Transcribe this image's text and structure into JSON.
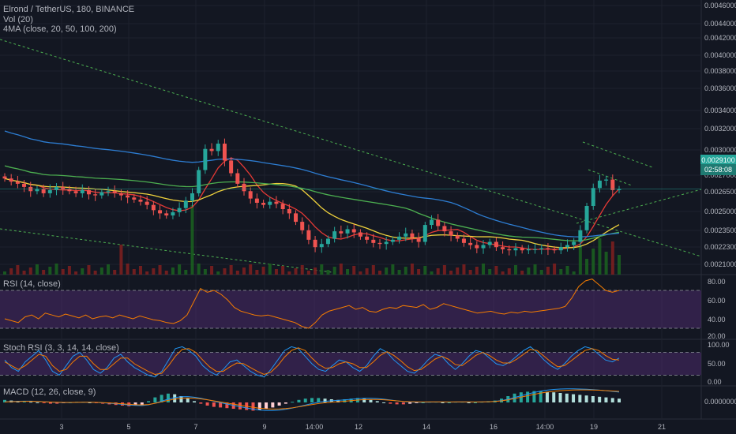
{
  "legend": {
    "symbol": "Elrond / TetherUS, 180, BINANCE",
    "vol": "Vol (20)",
    "ma": "4MA (close, 20, 50, 100, 200)"
  },
  "panels": {
    "rsi_label": "RSI (14, close)",
    "stoch_label": "Stoch RSI (3, 3, 14, 14, close)",
    "macd_label": "MACD (12, 26, close, 9)"
  },
  "price_tag": {
    "price": "0.0029100",
    "countdown": "02:58:08"
  },
  "x_ticks": [
    "3",
    "5",
    "7",
    "9",
    "14:00",
    "12",
    "14",
    "16",
    "14:00",
    "19",
    "21"
  ],
  "price_ticks": [
    "0.0046000",
    "0.0044000",
    "0.0042000",
    "0.0040000",
    "0.0038000",
    "0.0036000",
    "0.0034000",
    "0.0032000",
    "0.0030000",
    "0.0027000",
    "0.0026500",
    "0.0025000",
    "0.0023500",
    "0.0022300",
    "0.0021000"
  ],
  "rsi_ticks": [
    "80.00",
    "60.00",
    "40.00",
    "20.00"
  ],
  "stoch_ticks": [
    "100.00",
    "50.00",
    "0.00"
  ],
  "macd_ticks": [
    "0.0000000"
  ],
  "colors": {
    "bg": "#131722",
    "up": "#26a69a",
    "down": "#ef5350",
    "ma20": "#e53935",
    "ma50": "#f0d23c",
    "ma100": "#4caf50",
    "ma200": "#2d7dd2",
    "trend": "#4caf50",
    "rsi": "#f57c00",
    "stoch_k": "#2196f3",
    "stoch_d": "#f57c00",
    "band": "#4a2a6a"
  },
  "chart_data": [
    {
      "type": "candlestick",
      "title": "Elrond / TetherUS, 180, BINANCE",
      "ylim": [
        0.0021,
        0.0047
      ],
      "last_price": 0.00291,
      "candles_close": [
        0.00301,
        0.00298,
        0.00296,
        0.00293,
        0.00289,
        0.00291,
        0.00287,
        0.0029,
        0.00293,
        0.00291,
        0.00289,
        0.00287,
        0.0029,
        0.00286,
        0.00285,
        0.00288,
        0.00289,
        0.00287,
        0.00285,
        0.00283,
        0.00281,
        0.00279,
        0.00276,
        0.00271,
        0.00268,
        0.00266,
        0.00269,
        0.00273,
        0.0028,
        0.00287,
        0.00309,
        0.00329,
        0.00327,
        0.00334,
        0.00318,
        0.00306,
        0.00296,
        0.00289,
        0.00282,
        0.00278,
        0.00276,
        0.00279,
        0.00277,
        0.00272,
        0.00268,
        0.0026,
        0.00252,
        0.00243,
        0.00236,
        0.00239,
        0.00244,
        0.00251,
        0.00249,
        0.00253,
        0.0025,
        0.00246,
        0.00243,
        0.0024,
        0.00239,
        0.00241,
        0.00243,
        0.00246,
        0.00249,
        0.00245,
        0.00241,
        0.00257,
        0.00262,
        0.00256,
        0.00251,
        0.00247,
        0.00244,
        0.0024,
        0.00238,
        0.00235,
        0.00238,
        0.00241,
        0.00236,
        0.00234,
        0.00233,
        0.00235,
        0.00233,
        0.00234,
        0.00234,
        0.00235,
        0.00234,
        0.00233,
        0.00236,
        0.00238,
        0.00241,
        0.00252,
        0.00275,
        0.00292,
        0.00299,
        0.003,
        0.0029,
        0.00291
      ],
      "ma_series": [
        {
          "name": "MA 20",
          "period": 20
        },
        {
          "name": "MA 50",
          "period": 50
        },
        {
          "name": "MA 100",
          "period": 100
        },
        {
          "name": "MA 200",
          "period": 200
        }
      ]
    },
    {
      "type": "line",
      "title": "RSI (14, close)",
      "ylim": [
        20,
        80
      ],
      "bands": [
        30,
        70
      ],
      "values": [
        40,
        38,
        36,
        42,
        44,
        40,
        46,
        44,
        42,
        45,
        43,
        41,
        44,
        40,
        42,
        43,
        41,
        44,
        42,
        40,
        43,
        41,
        39,
        38,
        36,
        35,
        38,
        44,
        58,
        72,
        68,
        70,
        66,
        60,
        52,
        48,
        46,
        44,
        43,
        44,
        42,
        40,
        38,
        36,
        32,
        30,
        36,
        44,
        48,
        50,
        52,
        54,
        50,
        52,
        48,
        47,
        50,
        52,
        51,
        54,
        53,
        52,
        55,
        50,
        52,
        56,
        54,
        52,
        50,
        48,
        46,
        47,
        48,
        46,
        45,
        47,
        46,
        48,
        47,
        48,
        49,
        50,
        51,
        53,
        62,
        74,
        80,
        82,
        76,
        70,
        68,
        70
      ]
    },
    {
      "type": "line",
      "title": "Stoch RSI (3, 3, 14, 14, close)",
      "ylim": [
        0,
        100
      ],
      "bands": [
        20,
        80
      ],
      "series": [
        {
          "values": [
            60,
            40,
            30,
            55,
            70,
            85,
            60,
            30,
            20,
            45,
            70,
            80,
            60,
            35,
            25,
            40,
            65,
            75,
            55,
            40,
            30,
            20,
            15,
            30,
            60,
            90,
            95,
            85,
            70,
            45,
            30,
            20,
            35,
            55,
            60,
            45,
            30,
            20,
            15,
            35,
            60,
            85,
            95,
            90,
            70,
            50,
            35,
            30,
            45,
            60,
            55,
            40,
            30,
            45,
            70,
            90,
            80,
            60,
            45,
            30,
            25,
            40,
            60,
            75,
            70,
            50,
            35,
            50,
            70,
            85,
            80,
            65,
            50,
            45,
            55,
            70,
            85,
            95,
            80,
            60,
            45,
            35,
            50,
            70,
            85,
            95,
            90,
            75,
            60,
            55,
            65
          ]
        },
        {
          "values": [
            55,
            45,
            35,
            45,
            60,
            75,
            70,
            45,
            30,
            35,
            55,
            70,
            70,
            50,
            35,
            35,
            50,
            65,
            65,
            50,
            40,
            30,
            22,
            25,
            45,
            70,
            88,
            90,
            80,
            60,
            42,
            30,
            30,
            42,
            52,
            50,
            40,
            30,
            22,
            28,
            45,
            68,
            85,
            92,
            85,
            65,
            48,
            38,
            40,
            50,
            55,
            50,
            40,
            40,
            55,
            72,
            82,
            72,
            58,
            42,
            32,
            35,
            48,
            62,
            70,
            62,
            48,
            45,
            58,
            72,
            80,
            72,
            60,
            52,
            52,
            62,
            75,
            88,
            85,
            70,
            55,
            42,
            45,
            58,
            72,
            85,
            90,
            85,
            72,
            62,
            60
          ]
        }
      ]
    },
    {
      "type": "bar",
      "title": "MACD (12, 26, close, 9)",
      "ylim": [
        -4e-05,
        4e-05
      ],
      "values": [
        4e-06,
        3e-06,
        2e-06,
        2e-06,
        1e-06,
        0.0,
        -1e-06,
        -2e-06,
        -2e-06,
        -1e-06,
        0.0,
        1e-06,
        1e-06,
        0.0,
        -1e-06,
        -2e-06,
        -3e-06,
        -4e-06,
        -5e-06,
        -6e-06,
        -5e-06,
        -4e-06,
        2e-06,
        8e-06,
        1.2e-05,
        1.4e-05,
        1.3e-05,
        1e-05,
        6e-06,
        2e-06,
        -2e-06,
        -5e-06,
        -7e-06,
        -8e-06,
        -9e-06,
        -1e-05,
        -1.1e-05,
        -1.2e-05,
        -1.3e-05,
        -1.2e-05,
        -1e-05,
        -8e-06,
        -5e-06,
        -2e-06,
        1e-06,
        4e-06,
        6e-06,
        7e-06,
        7e-06,
        6e-06,
        5e-06,
        4e-06,
        5e-06,
        6e-06,
        7e-06,
        6e-06,
        4e-06,
        2e-06,
        0.0,
        -2e-06,
        -3e-06,
        -3e-06,
        -2e-06,
        -1e-06,
        0.0,
        1e-06,
        1e-06,
        0.0,
        0.0,
        1e-06,
        1e-06,
        0.0,
        0.0,
        1e-06,
        2e-06,
        3e-06,
        6e-06,
        1e-05,
        1.4e-05,
        1.6e-05,
        1.7e-05,
        1.8e-05,
        1.8e-05,
        1.7e-05,
        1.6e-05,
        1.5e-05,
        1.4e-05,
        1.3e-05,
        1.2e-05,
        1.1e-05,
        1e-05,
        9e-06,
        8e-06,
        7e-06,
        6e-06
      ]
    }
  ]
}
